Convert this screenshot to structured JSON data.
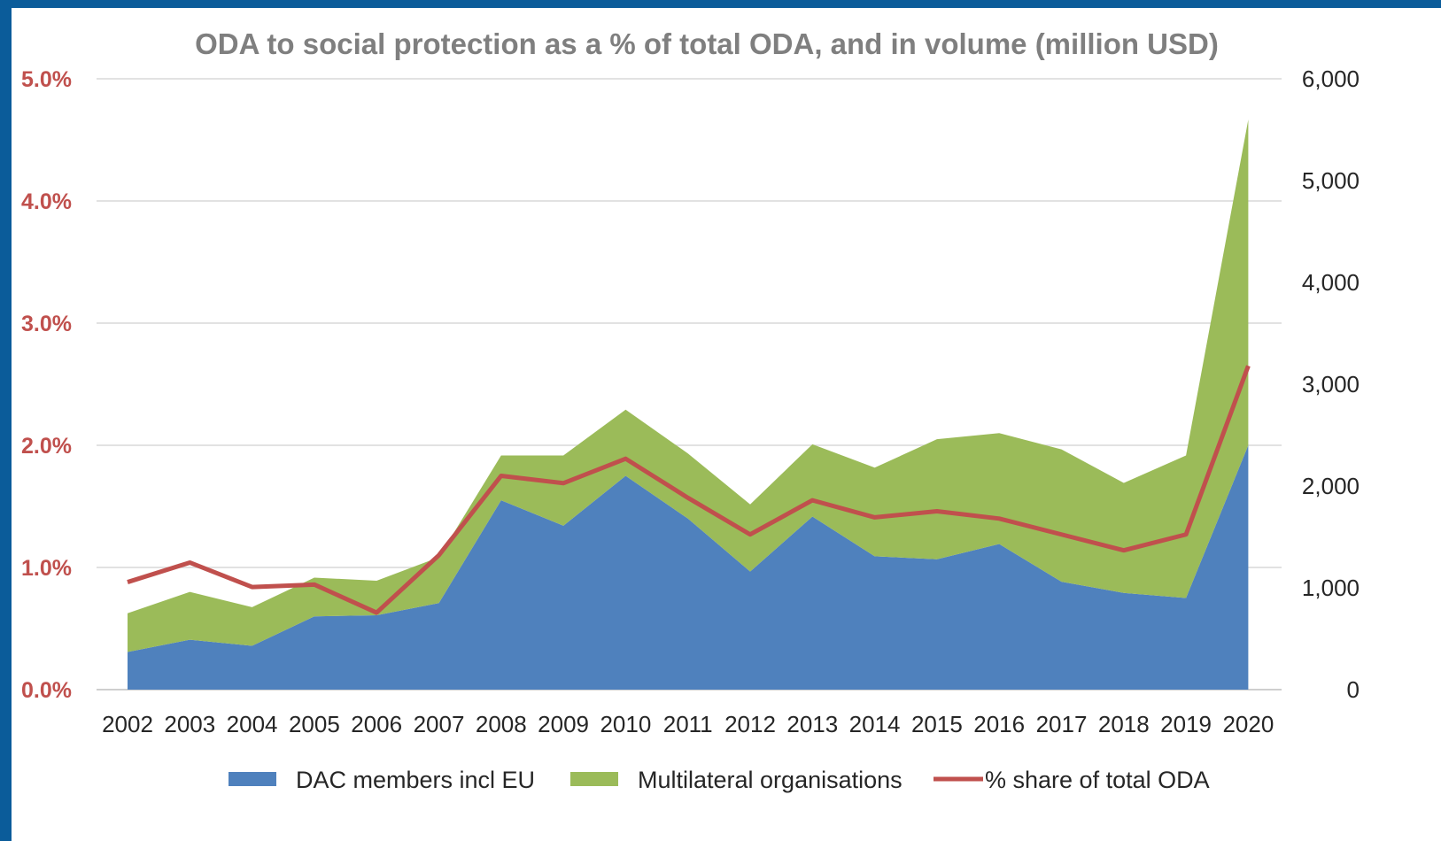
{
  "chart_data": {
    "type": "area",
    "title": "ODA to social protection as a % of total ODA, and in volume (million USD)",
    "categories": [
      "2002",
      "2003",
      "2004",
      "2005",
      "2006",
      "2007",
      "2008",
      "2009",
      "2010",
      "2011",
      "2012",
      "2013",
      "2014",
      "2015",
      "2016",
      "2017",
      "2018",
      "2019",
      "2020"
    ],
    "y_left": {
      "ticks": [
        "0.0%",
        "1.0%",
        "2.0%",
        "3.0%",
        "4.0%",
        "5.0%"
      ],
      "lim": [
        0,
        5.0
      ],
      "color": "#c0504d"
    },
    "y_right": {
      "ticks": [
        "0",
        "1,000",
        "2,000",
        "3,000",
        "4,000",
        "5,000",
        "6,000"
      ],
      "lim": [
        0,
        6000
      ]
    },
    "grid": true,
    "legend_position": "bottom",
    "series": [
      {
        "name": "DAC members incl EU",
        "type": "stacked-area",
        "axis": "right",
        "color": "#4f81bd",
        "values": [
          370,
          490,
          430,
          720,
          730,
          850,
          1860,
          1610,
          2100,
          1680,
          1160,
          1700,
          1310,
          1280,
          1430,
          1060,
          950,
          900,
          2400
        ]
      },
      {
        "name": "Multilateral organisations",
        "type": "stacked-area",
        "axis": "right",
        "color": "#9bbb59",
        "values": [
          380,
          470,
          380,
          380,
          340,
          450,
          440,
          690,
          650,
          640,
          660,
          710,
          870,
          1180,
          1090,
          1300,
          1080,
          1400,
          3200
        ]
      },
      {
        "name": "% share of total ODA",
        "type": "line",
        "axis": "left",
        "color": "#c0504d",
        "values": [
          0.88,
          1.04,
          0.84,
          0.86,
          0.63,
          1.1,
          1.75,
          1.69,
          1.89,
          1.57,
          1.27,
          1.55,
          1.41,
          1.46,
          1.4,
          1.27,
          1.14,
          1.27,
          2.65
        ]
      }
    ]
  }
}
